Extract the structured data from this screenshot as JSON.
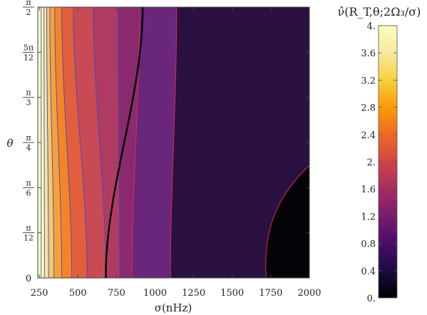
{
  "chart_data": {
    "type": "contour",
    "title": "",
    "xlabel": "σ(nHz)",
    "ylabel": "θ",
    "xlim": [
      240,
      2000
    ],
    "ylim": [
      0,
      1.5708
    ],
    "x_ticks": [
      "250",
      "500",
      "750",
      "1000",
      "1250",
      "1500",
      "1750",
      "2000"
    ],
    "x_tick_values": [
      250,
      500,
      750,
      1000,
      1250,
      1500,
      1750,
      2000
    ],
    "y_ticks": [
      {
        "value": 0,
        "num": "0",
        "den": ""
      },
      {
        "value": 0.2618,
        "num": "π",
        "den": "12"
      },
      {
        "value": 0.5236,
        "num": "π",
        "den": "6"
      },
      {
        "value": 0.7854,
        "num": "π",
        "den": "4"
      },
      {
        "value": 1.0472,
        "num": "π",
        "den": "3"
      },
      {
        "value": 1.309,
        "num": "5π",
        "den": "12"
      },
      {
        "value": 1.5708,
        "num": "π",
        "den": "2"
      }
    ],
    "contour_levels": [
      {
        "level": 4.0,
        "sigma_at_0": 262,
        "sigma_at_half_pi": 262,
        "color": "#fcfdbf"
      },
      {
        "level": 3.6,
        "sigma_at_0": 283,
        "sigma_at_half_pi": 280,
        "color": "#f9e3a0"
      },
      {
        "level": 3.2,
        "sigma_at_0": 310,
        "sigma_at_half_pi": 298,
        "color": "#f5c86a"
      },
      {
        "level": 2.8,
        "sigma_at_0": 345,
        "sigma_at_half_pi": 318,
        "color": "#f8a13a"
      },
      {
        "level": 2.4,
        "sigma_at_0": 395,
        "sigma_at_half_pi": 350,
        "color": "#f58428"
      },
      {
        "level": 2.0,
        "sigma_at_0": 460,
        "sigma_at_half_pi": 395,
        "color": "#e15f3c"
      },
      {
        "level": 1.6,
        "sigma_at_0": 560,
        "sigma_at_half_pi": 470,
        "color": "#c84a55"
      },
      {
        "level": 1.2,
        "sigma_at_0": 680,
        "sigma_at_half_pi": 600,
        "color": "#b03b62"
      },
      {
        "level": 1.0,
        "sigma_at_0": 770,
        "sigma_at_half_pi": 760,
        "color": "#8a2a6e"
      },
      {
        "level": 0.8,
        "sigma_at_0": 850,
        "sigma_at_half_pi": 900,
        "color": "#69267a"
      },
      {
        "level": 0.4,
        "sigma_at_0": 1100,
        "sigma_at_half_pi": 1140,
        "color": "#3a1a5a"
      },
      {
        "level": 0.1,
        "sigma_at_0": 1720,
        "sigma_at_half_pi": null,
        "color": "#1e0c2e"
      }
    ],
    "highlighted_contour": {
      "color": "black",
      "sigma_at_0": 680,
      "sigma_at_half_pi": 920
    },
    "colorbar": {
      "title": "ν̂(R_T,θ;2Ω₃/σ)",
      "range": [
        0,
        4.0
      ],
      "ticks": [
        "0.",
        "0.4",
        "0.8",
        "1.2",
        "1.6",
        "2.",
        "2.4",
        "2.8",
        "3.2",
        "3.6",
        "4."
      ],
      "tick_values": [
        0,
        0.4,
        0.8,
        1.2,
        1.6,
        2.0,
        2.4,
        2.8,
        3.2,
        3.6,
        4.0
      ],
      "colormap": "inferno"
    },
    "grid": false,
    "legend": "colorbar-right"
  }
}
